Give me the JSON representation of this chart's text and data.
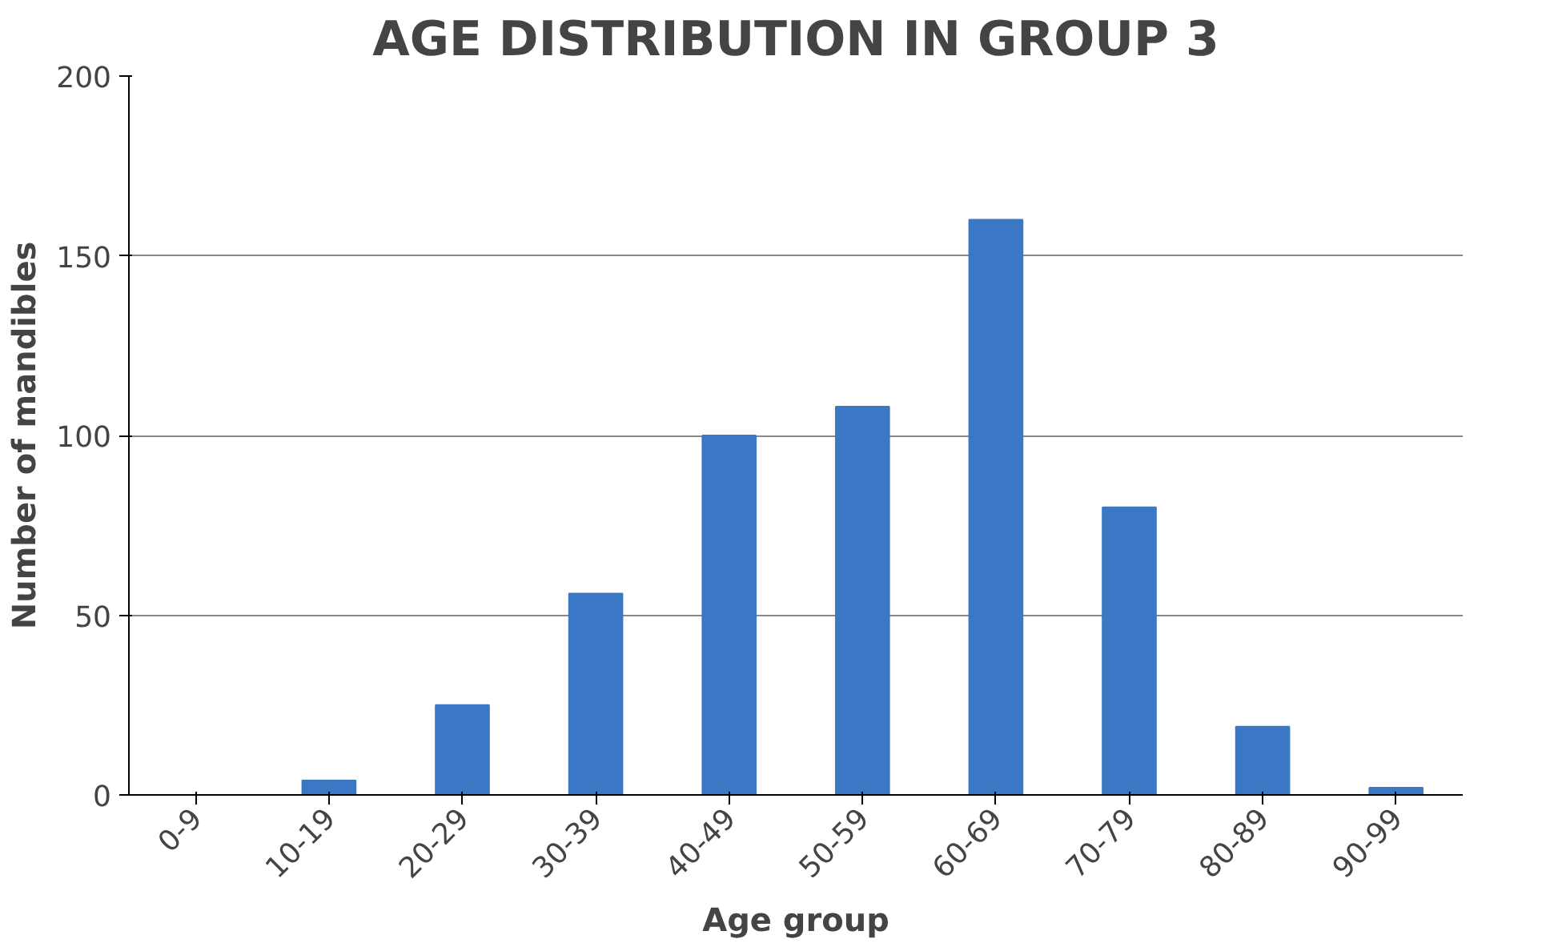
{
  "chart_data": {
    "type": "bar",
    "title": "AGE DISTRIBUTION IN GROUP 3",
    "xlabel": "Age group",
    "ylabel": "Number of mandibles",
    "categories": [
      "0-9",
      "10-19",
      "20-29",
      "30-39",
      "40-49",
      "50-59",
      "60-69",
      "70-79",
      "80-89",
      "90-99"
    ],
    "values": [
      0,
      4,
      25,
      56,
      100,
      108,
      160,
      80,
      19,
      2
    ],
    "color": "#3a78c6",
    "ylim": [
      0,
      200
    ],
    "yticks": [
      0,
      50,
      100,
      150,
      200
    ],
    "grid": "y"
  }
}
